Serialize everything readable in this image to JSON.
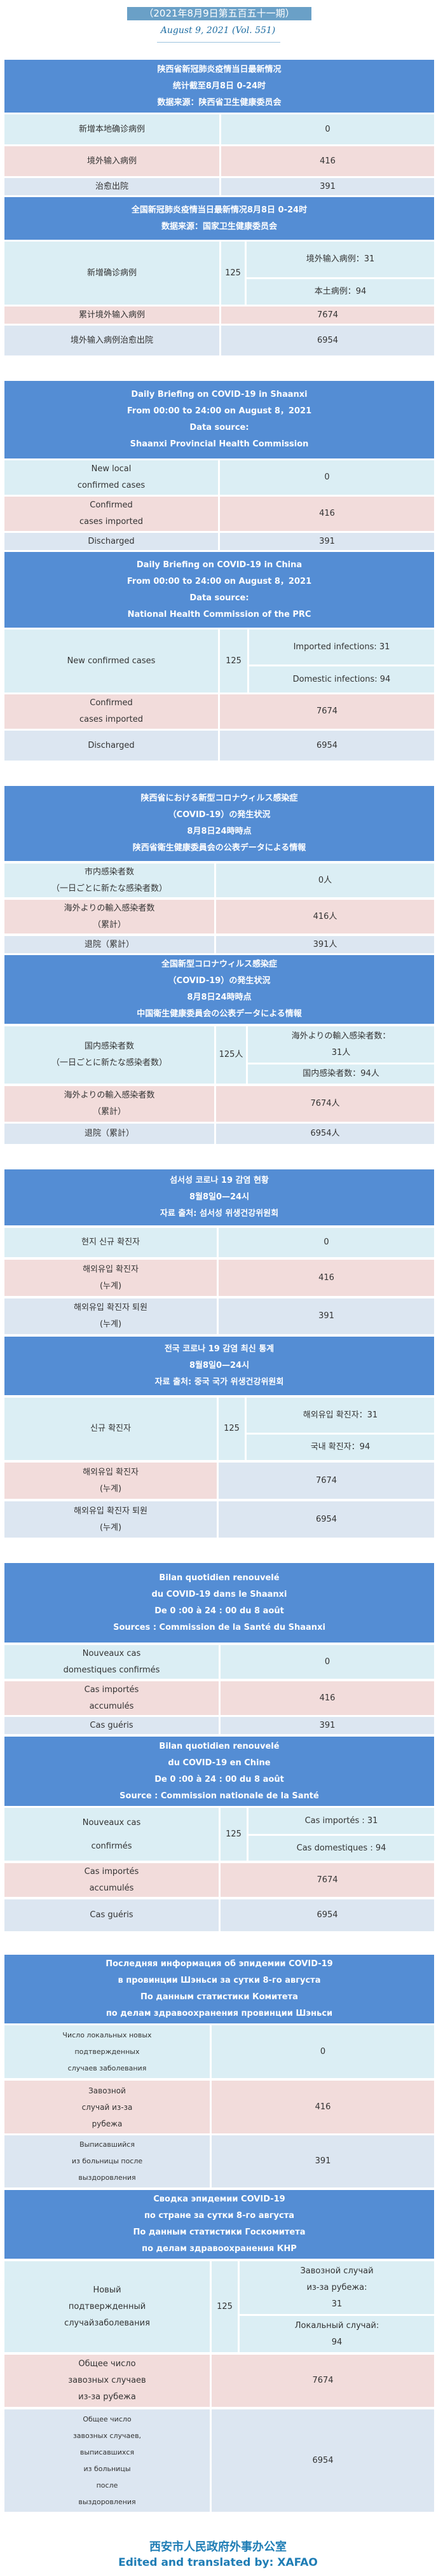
{
  "masthead": {
    "issue_cn": "（2021年8月9日第五百五十一期）",
    "issue_en": "August 9, 2021 (Vol. 551)"
  },
  "colors": {
    "header": "#548dd4",
    "row_local": "#dbeef4",
    "row_imported": "#f2dcdb",
    "row_discharged": "#dce6f1",
    "footer": "#1f7db5"
  },
  "tables": [
    {
      "header": "陕西省新冠肺炎疫情当日最新情况\n统计截至8月8日 0-24时\n数据来源：陕西省卫生健康委员会",
      "rows": [
        {
          "label": "新增本地确诊病例",
          "value": "0"
        },
        {
          "label": "境外输入病例",
          "value": "416"
        },
        {
          "label": "治愈出院",
          "value": "391"
        }
      ]
    },
    {
      "header": "全国新冠肺炎疫情当日最新情况8月8日 0-24时\n数据来源：国家卫生健康委员会",
      "split": {
        "label": "新增确诊病例",
        "total": "125",
        "sub": [
          "境外输入病例：31",
          "本土病例：94"
        ]
      },
      "rows": [
        {
          "label": "累计境外输入病例",
          "value": "7674"
        },
        {
          "label": "境外输入病例治愈出院",
          "value": "6954"
        }
      ]
    },
    {
      "header": "Daily Briefing on COVID-19 in Shaanxi\nFrom 00:00 to 24:00 on August 8，2021\nData source:\nShaanxi Provincial Health Commission",
      "rows": [
        {
          "label": "New local\nconfirmed cases",
          "value": "0"
        },
        {
          "label": "Confirmed\ncases imported",
          "value": "416"
        },
        {
          "label": "Discharged",
          "value": "391"
        }
      ]
    },
    {
      "header": "Daily Briefing on COVID-19 in China\nFrom 00:00 to 24:00 on  August 8，2021\nData source:\nNational Health Commission of the PRC",
      "split": {
        "label": "New confirmed cases",
        "total": "125",
        "sub": [
          "Imported infections: 31",
          "Domestic infections: 94"
        ]
      },
      "rows": [
        {
          "label": "Confirmed\ncases imported",
          "value": "7674"
        },
        {
          "label": "Discharged",
          "value": "6954"
        }
      ]
    },
    {
      "header": "陕西省における新型コロナウィルス感染症\n（COVID-19）の発生状況\n8月8日24時時点\n陕西省衛生健康委員会の公表データによる情報",
      "rows": [
        {
          "label": "市内感染者数\n（一日ごとに新たな感染者数）",
          "value": "0人"
        },
        {
          "label": "海外よりの輸入感染者数\n（累計）",
          "value": "416人"
        },
        {
          "label": "退院（累計）",
          "value": "391人"
        }
      ]
    },
    {
      "header": "全国新型コロナウィルス感染症\n（COVID-19）の発生状況\n8月8日24時時点\n中国衛生健康委員会の公表データによる情報",
      "split": {
        "label": "国内感染者数\n（一日ごとに新たな感染者数）",
        "total": "125人",
        "sub": [
          "海外よりの輸入感染者数：\n31人",
          "国内感染者数：94人"
        ]
      },
      "rows": [
        {
          "label": "海外よりの輸入感染者数\n（累計）",
          "value": "7674人"
        },
        {
          "label": "退院（累計）",
          "value": "6954人"
        }
      ]
    },
    {
      "header": "섬서성 코로나 19 감염 현황\n8월8일0—24시\n자료 출처: 섬서성 위생건강위원회",
      "rows": [
        {
          "label": "현지 신규 확진자",
          "value": "0"
        },
        {
          "label": "해외유입 확진자\n(누계)",
          "value": "416"
        },
        {
          "label": "해외유입 확진자 퇴원\n(누계)",
          "value": "391"
        }
      ]
    },
    {
      "header": "전국 코로나 19 감염 최신 통계\n8월8일0—24시\n자료 출처: 중국 국가 위생건강위원회",
      "split": {
        "label": "신규 확진자",
        "total": "125",
        "sub": [
          "해외유입 확진자：31",
          "국내 확진자：94"
        ]
      },
      "rows": [
        {
          "label": "해외유입 확진자\n(누계)",
          "value": "7674"
        },
        {
          "label": "해외유입 확진자 퇴원\n(누계)",
          "value": "6954"
        }
      ]
    },
    {
      "header": "Bilan quotidien renouvelé\ndu COVID-19 dans le Shaanxi\nDe 0 :00 à 24 : 00 du 8 août\nSources : Commission de la Santé du Shaanxi",
      "rows": [
        {
          "label": "Nouveaux cas\ndomestiques confirmés",
          "value": "0"
        },
        {
          "label": "Cas importés\naccumulés",
          "value": "416"
        },
        {
          "label": "Cas guéris",
          "value": "391"
        }
      ]
    },
    {
      "header": "Bilan quotidien renouvelé\ndu COVID-19 en Chine\nDe 0 :00 à 24 : 00 du 8 août\nSource : Commission nationale de la Santé",
      "split": {
        "label": "Nouveaux cas\nconfirmés",
        "total": "125",
        "sub": [
          "Cas importés : 31",
          "Cas domestiques : 94"
        ]
      },
      "rows": [
        {
          "label": "Cas importés\naccumulés",
          "value": "7674"
        },
        {
          "label": "Cas guéris",
          "value": "6954"
        }
      ]
    },
    {
      "header": "Последняя информация об эпидемии COVID-19\nв провинции Шэньси за сутки 8-го августа\nПо данным статистики Комитета\nпо делам здравоохранения провинции Шэньси",
      "rows": [
        {
          "label": "Число локальных новых\nподтвержденных\nслучаев заболевания",
          "value": "0"
        },
        {
          "label": "Завозной\nслучай из-за\nрубежа",
          "value": "416"
        },
        {
          "label": "Выписавшийся\nиз больницы после\nвыздоровления",
          "value": "391"
        }
      ]
    },
    {
      "header": "Сводка эпидемии COVID-19\nпо стране за сутки 8-го августа\nПо данным статистики Госкомитета\nпо делам здравоохранения КНР",
      "split": {
        "label": "Новый\nподтвержденный\nслучайзаболевания",
        "total": "125",
        "sub": [
          "Завозной случай\nиз-за рубежа:\n31",
          "Локальный случай:\n94"
        ]
      },
      "rows": [
        {
          "label": "Общее число\nзавозных случаев\nиз-за рубежа",
          "value": "7674"
        },
        {
          "label": "Общее число\nзавозных случаев,\nвыписавшихся\nиз больницы\nпосле\nвыздоровления",
          "value": "6954"
        }
      ]
    }
  ],
  "footer": {
    "org": "西安市人民政府外事办公室",
    "credit": "Edited and translated by: XAFAO"
  }
}
